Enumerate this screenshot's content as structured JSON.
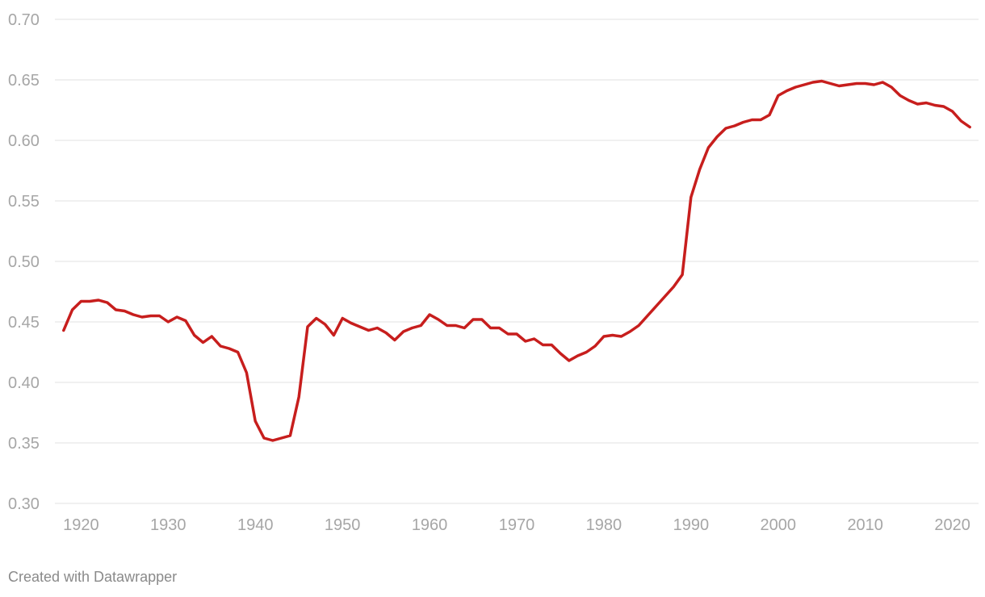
{
  "chart_data": {
    "type": "line",
    "title": "",
    "xlabel": "",
    "ylabel": "",
    "xlim": [
      1917,
      2023
    ],
    "ylim": [
      0.3,
      0.7
    ],
    "grid": true,
    "y_ticks": [
      "0.30",
      "0.35",
      "0.40",
      "0.45",
      "0.50",
      "0.55",
      "0.60",
      "0.65",
      "0.70"
    ],
    "x_ticks": [
      "1920",
      "1930",
      "1940",
      "1950",
      "1960",
      "1970",
      "1980",
      "1990",
      "2000",
      "2010",
      "2020"
    ],
    "series": [
      {
        "color": "#c71e1d",
        "x": [
          1918,
          1919,
          1920,
          1921,
          1922,
          1923,
          1924,
          1925,
          1926,
          1927,
          1928,
          1929,
          1930,
          1931,
          1932,
          1933,
          1934,
          1935,
          1936,
          1937,
          1938,
          1939,
          1940,
          1941,
          1942,
          1943,
          1944,
          1945,
          1946,
          1947,
          1948,
          1949,
          1950,
          1951,
          1952,
          1953,
          1954,
          1955,
          1956,
          1957,
          1958,
          1959,
          1960,
          1961,
          1962,
          1963,
          1964,
          1965,
          1966,
          1967,
          1968,
          1969,
          1970,
          1971,
          1972,
          1973,
          1974,
          1975,
          1976,
          1977,
          1978,
          1979,
          1980,
          1981,
          1982,
          1983,
          1984,
          1985,
          1986,
          1987,
          1988,
          1989,
          1990,
          1991,
          1992,
          1993,
          1994,
          1995,
          1996,
          1997,
          1998,
          1999,
          2000,
          2001,
          2002,
          2003,
          2004,
          2005,
          2006,
          2007,
          2008,
          2009,
          2010,
          2011,
          2012,
          2013,
          2014,
          2015,
          2016,
          2017,
          2018,
          2019,
          2020,
          2021,
          2022
        ],
        "values": [
          0.443,
          0.46,
          0.467,
          0.467,
          0.468,
          0.466,
          0.46,
          0.459,
          0.456,
          0.454,
          0.455,
          0.455,
          0.45,
          0.454,
          0.451,
          0.439,
          0.433,
          0.438,
          0.43,
          0.428,
          0.425,
          0.408,
          0.368,
          0.354,
          0.352,
          0.354,
          0.356,
          0.388,
          0.446,
          0.453,
          0.448,
          0.439,
          0.453,
          0.449,
          0.446,
          0.443,
          0.445,
          0.441,
          0.435,
          0.442,
          0.445,
          0.447,
          0.456,
          0.452,
          0.447,
          0.447,
          0.445,
          0.452,
          0.452,
          0.445,
          0.445,
          0.44,
          0.44,
          0.434,
          0.436,
          0.431,
          0.431,
          0.424,
          0.418,
          0.422,
          0.425,
          0.43,
          0.438,
          0.439,
          0.438,
          0.442,
          0.447,
          0.455,
          0.463,
          0.471,
          0.479,
          0.489,
          0.553,
          0.576,
          0.594,
          0.603,
          0.61,
          0.612,
          0.615,
          0.617,
          0.617,
          0.621,
          0.637,
          0.641,
          0.644,
          0.646,
          0.648,
          0.649,
          0.647,
          0.645,
          0.646,
          0.647,
          0.647,
          0.646,
          0.648,
          0.644,
          0.637,
          0.633,
          0.63,
          0.631,
          0.629,
          0.628,
          0.624,
          0.616,
          0.611
        ]
      }
    ]
  },
  "footer": {
    "credit": "Created with Datawrapper"
  }
}
